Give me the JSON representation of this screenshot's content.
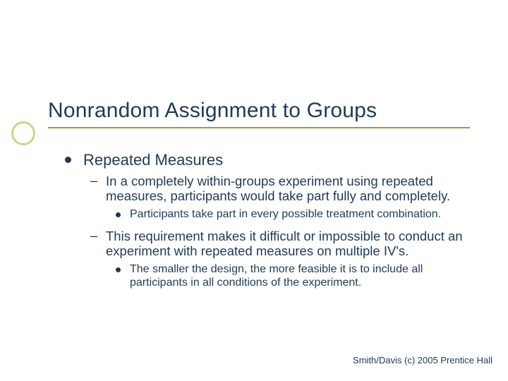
{
  "slide": {
    "title": "Nonrandom Assignment to Groups",
    "title_color": "#1f3a57",
    "title_fontsize": 30,
    "underline_color": "#8aa63b",
    "ring_color": "#c6d98a",
    "background_color": "#ffffff",
    "text_color": "#1f3a57",
    "bullet_lvl1_fontsize": 22,
    "bullet_lvl2_fontsize": 18.5,
    "bullet_lvl3_fontsize": 16,
    "bullets": {
      "lvl1_0": "Repeated Measures",
      "lvl2_0": "In a completely within-groups experiment using repeated measures, participants would take part fully and completely.",
      "lvl3_0": "Participants take part in every possible treatment combination.",
      "lvl2_1": "This requirement makes it difficult or impossible to conduct an experiment with repeated measures on multiple IV's.",
      "lvl3_1": "The smaller the design, the more feasible it is to include all participants in all conditions of the experiment."
    },
    "footer": "Smith/Davis (c) 2005 Prentice Hall",
    "footer_fontsize": 13
  }
}
